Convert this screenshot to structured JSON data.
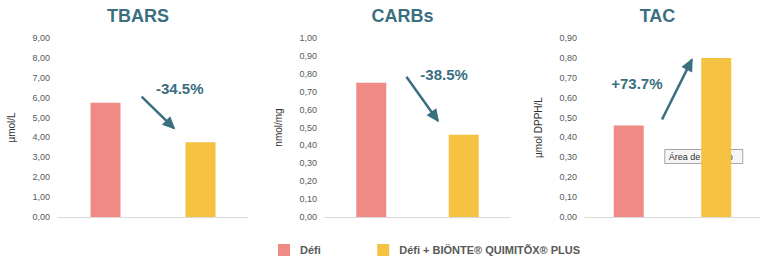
{
  "chart_data": [
    {
      "type": "bar",
      "title": "TBARS",
      "y_label": "µmol/L",
      "categories": [
        "Défi",
        "Défi + BIÖNTE® QUIMITÕX® PLUS"
      ],
      "values": [
        5.75,
        3.76
      ],
      "colors": [
        "#f08a84",
        "#f5c242"
      ],
      "ylim": [
        0,
        9
      ],
      "yticks": [
        {
          "value": 0,
          "label": "0,00"
        },
        {
          "value": 1,
          "label": "1,00"
        },
        {
          "value": 2,
          "label": "2,00"
        },
        {
          "value": 3,
          "label": "3,00"
        },
        {
          "value": 4,
          "label": "4,00"
        },
        {
          "value": 5,
          "label": "5,00"
        },
        {
          "value": 6,
          "label": "6,00"
        },
        {
          "value": 7,
          "label": "7,00"
        },
        {
          "value": 8,
          "label": "8,00"
        },
        {
          "value": 9,
          "label": "9,00"
        }
      ],
      "annotations": [
        "-34.5%"
      ],
      "grid": false,
      "tick_labels": "y",
      "legend": "bottom"
    },
    {
      "type": "bar",
      "title": "CARBs",
      "y_label": "nmol/mg",
      "categories": [
        "Défi",
        "Défi + BIÖNTE® QUIMITÕX® PLUS"
      ],
      "values": [
        0.75,
        0.46
      ],
      "colors": [
        "#f08a84",
        "#f5c242"
      ],
      "ylim": [
        0,
        1
      ],
      "yticks": [
        {
          "value": 0,
          "label": "0,00"
        },
        {
          "value": 0.1,
          "label": "0,10"
        },
        {
          "value": 0.2,
          "label": "0,20"
        },
        {
          "value": 0.3,
          "label": "0,30"
        },
        {
          "value": 0.4,
          "label": "0,40"
        },
        {
          "value": 0.5,
          "label": "0,50"
        },
        {
          "value": 0.6,
          "label": "0,60"
        },
        {
          "value": 0.7,
          "label": "0,70"
        },
        {
          "value": 0.8,
          "label": "0,80"
        },
        {
          "value": 0.9,
          "label": "0,90"
        },
        {
          "value": 1,
          "label": "1,00"
        }
      ],
      "annotations": [
        "-38.5%"
      ],
      "grid": false,
      "tick_labels": "y",
      "legend": "bottom"
    },
    {
      "type": "bar",
      "title": "TAC",
      "y_label": "µmol DPPH/L",
      "categories": [
        "Défi",
        "Défi + BIÖNTE® QUIMITÕX® PLUS"
      ],
      "values": [
        0.46,
        0.8
      ],
      "colors": [
        "#f08a84",
        "#f5c242"
      ],
      "ylim": [
        0,
        0.9
      ],
      "yticks": [
        {
          "value": 0,
          "label": "0,00"
        },
        {
          "value": 0.1,
          "label": "0,10"
        },
        {
          "value": 0.2,
          "label": "0,20"
        },
        {
          "value": 0.3,
          "label": "0,30"
        },
        {
          "value": 0.4,
          "label": "0,40"
        },
        {
          "value": 0.5,
          "label": "0,50"
        },
        {
          "value": 0.6,
          "label": "0,60"
        },
        {
          "value": 0.7,
          "label": "0,70"
        },
        {
          "value": 0.8,
          "label": "0,80"
        },
        {
          "value": 0.9,
          "label": "0,90"
        }
      ],
      "annotations": [
        "+73.7%",
        "Área de trazado"
      ],
      "grid": false,
      "tick_labels": "y",
      "legend": "bottom"
    }
  ]
}
